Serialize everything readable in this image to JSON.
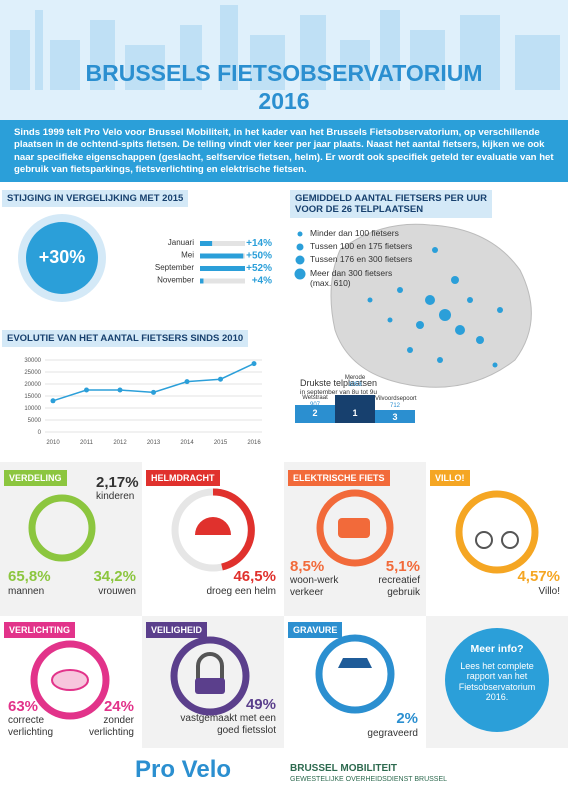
{
  "header": {
    "title": "BRUSSELS FIETSOBSERVATORIUM",
    "year": "2016",
    "intro": "Sinds 1999 telt Pro Velo voor Brussel Mobiliteit, in het kader van het Brussels Fietsobservatorium, op verschillende plaatsen in de ochtend-spits fietsen. De telling vindt vier keer per jaar plaats. Naast het aantal fietsers, kijken we ook naar specifieke eigenschappen (geslacht, selfservice fietsen, helm). Er wordt ook specifiek geteld ter evaluatie van het gebruik van fietsparkings, fietsverlichting en elektrische fietsen."
  },
  "increase": {
    "title": "STIJGING IN VERGELIJKING MET 2015",
    "total": "+30%"
  },
  "chart_data": [
    {
      "type": "bar",
      "orientation": "horizontal",
      "categories": [
        "Januari",
        "Mei",
        "September",
        "November"
      ],
      "values": [
        14,
        50,
        52,
        4
      ],
      "value_labels": [
        "+14%",
        "+50%",
        "+52%",
        "+4%"
      ],
      "color": "#2b9fd9"
    },
    {
      "type": "line",
      "title": "EVOLUTIE VAN HET AANTAL FIETSERS SINDS 2010",
      "categories": [
        "2010",
        "2011",
        "2012",
        "2013",
        "2014",
        "2015",
        "2016"
      ],
      "values": [
        13000,
        17500,
        17500,
        16500,
        21000,
        22000,
        28500
      ],
      "ylim": [
        0,
        30000
      ],
      "yticks": [
        0,
        5000,
        10000,
        15000,
        20000,
        25000,
        30000
      ],
      "grid": true,
      "color": "#2b9fd9"
    }
  ],
  "map": {
    "title": [
      "GEMIDDELD AANTAL FIETSERS PER UUR",
      "VOOR DE 26 TELPLAATSEN"
    ],
    "legend": [
      "Minder dan 100 fietsers",
      "Tussen 100 en 175 fietsers",
      "Tussen 176 en 300 fietsers",
      "Meer dan 300 fietsers (max. 610)"
    ],
    "busiest": {
      "title": "Drukste telplaatsen",
      "subtitle": "in september van 8u tot 9u",
      "places": [
        {
          "name": "Wetstraat",
          "count": "907",
          "rank": "2"
        },
        {
          "name": "Merode",
          "count": "1053",
          "rank": "1"
        },
        {
          "name": "Vilvoordsepoort",
          "count": "712",
          "rank": "3"
        }
      ]
    }
  },
  "cards": [
    {
      "title": "VERDELING",
      "stats": [
        {
          "value": "2,17%",
          "label": "kinderen"
        },
        {
          "value": "65,8%",
          "label": "mannen"
        },
        {
          "value": "34,2%",
          "label": "vrouwen"
        }
      ]
    },
    {
      "title": "HELMDRACHT",
      "stats": [
        {
          "value": "46,5%",
          "label": "droeg een helm"
        }
      ]
    },
    {
      "title": "ELEKTRISCHE FIETS",
      "stats": [
        {
          "value": "8,5%",
          "label": "woon-werk verkeer"
        },
        {
          "value": "5,1%",
          "label": "recreatief gebruik"
        }
      ]
    },
    {
      "title": "VILLO!",
      "stats": [
        {
          "value": "4,57%",
          "label": "Villo!"
        }
      ]
    },
    {
      "title": "VERLICHTING",
      "stats": [
        {
          "value": "63%",
          "label": "correcte verlichting"
        },
        {
          "value": "24%",
          "label": "zonder verlichting"
        }
      ]
    },
    {
      "title": "VEILIGHEID",
      "stats": [
        {
          "value": "49%",
          "label": "vastgemaakt met een goed fietsslot"
        }
      ]
    },
    {
      "title": "GRAVURE",
      "stats": [
        {
          "value": "2%",
          "label": "gegraveerd"
        }
      ]
    }
  ],
  "info": {
    "title": "Meer info?",
    "text": "Lees het complete rapport van het Fietsobservatorium 2016."
  },
  "footer": {
    "brand": "Pro Velo",
    "partner": "BRUSSEL MOBILITEIT",
    "partner_sub": "GEWESTELIJKE OVERHEIDSDIENST BRUSSEL"
  }
}
